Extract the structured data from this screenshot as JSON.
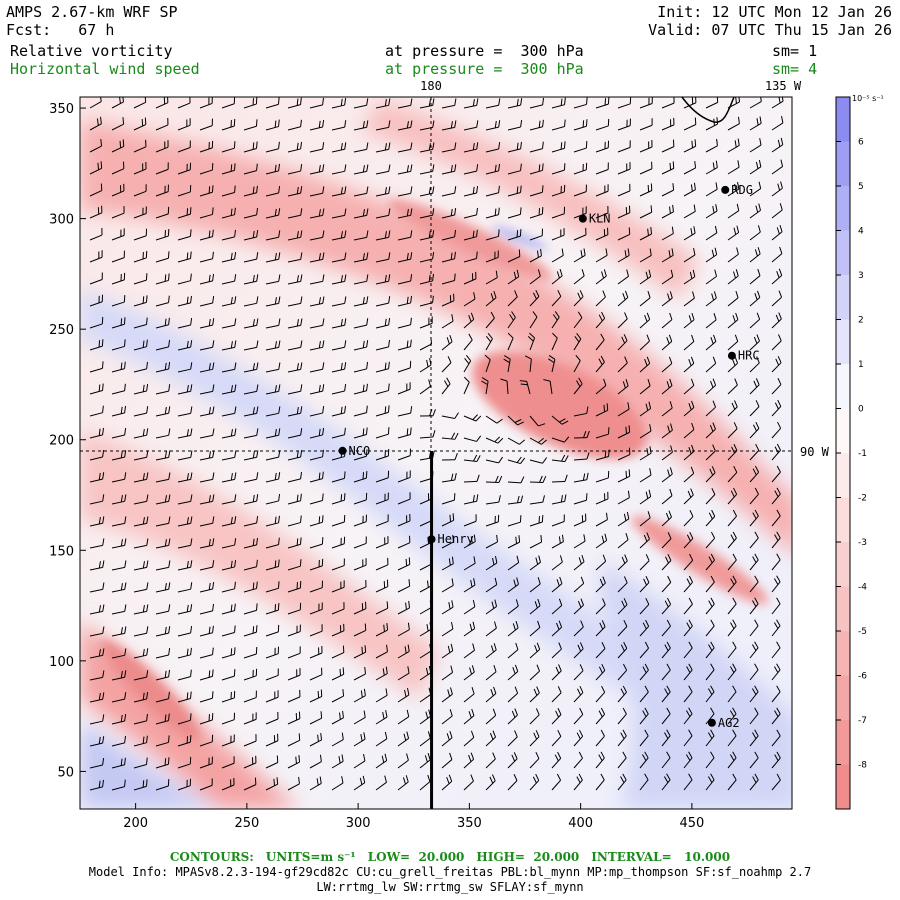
{
  "header": {
    "model": "AMPS 2.67-km WRF SP",
    "forecast": "Fcst:   67 h",
    "init": "Init: 12 UTC Mon 12 Jan 26",
    "valid": "Valid: 07 UTC Thu 15 Jan 26",
    "field1": "Relative vorticity",
    "field1_level": "at pressure =  300 hPa",
    "field1_sm": "sm= 1",
    "field2": "Horizontal wind speed",
    "field2_level": "at pressure =  300 hPa",
    "field2_sm": "sm= 4"
  },
  "colorbar": {
    "units": "10⁻⁵ s⁻¹",
    "ticks": [
      "6",
      "5",
      "4",
      "3",
      "2",
      "1",
      "0",
      "-1",
      "-2",
      "-3",
      "-4",
      "-5",
      "-6",
      "-7",
      "-8"
    ]
  },
  "chart_data": {
    "type": "heatmap",
    "title": "Relative vorticity and horizontal wind speed at 300 hPa",
    "x_ticks": [
      "200",
      "250",
      "300",
      "350",
      "400",
      "450"
    ],
    "y_ticks": [
      "350",
      "300",
      "250",
      "200",
      "150",
      "100",
      "50"
    ],
    "xlim": [
      175,
      495
    ],
    "ylim": [
      33,
      355
    ],
    "meridian_labels": [
      "180",
      "135 W",
      "90 W"
    ],
    "cross_section_x": 333,
    "stations": [
      {
        "name": "RDG",
        "x": 465,
        "y": 313
      },
      {
        "name": "KLN",
        "x": 401,
        "y": 300
      },
      {
        "name": "HRC",
        "x": 468,
        "y": 238
      },
      {
        "name": "NCO",
        "x": 293,
        "y": 195
      },
      {
        "name": "Henry",
        "x": 333,
        "y": 155
      },
      {
        "name": "AG2",
        "x": 459,
        "y": 72
      }
    ]
  },
  "contours": {
    "label": "CONTOURS:",
    "units": "UNITS=m s⁻¹",
    "low": "LOW=  20.000",
    "high": "HIGH=  20.000",
    "interval": "INTERVAL=   10.000"
  },
  "model_info": {
    "line1": "Model Info: MPASv8.2.3-194-gf29cd82c CU:cu_grell_freitas PBL:bl_mynn MP:mp_thompson SF:sf_noahmp 2.7",
    "line2": "LW:rrtmg_lw SW:rrtmg_sw SFLAY:sf_mynn"
  },
  "colors": {
    "positive": "#8c8cf0",
    "negative": "#f08c8c",
    "green": "#1a8a1a"
  }
}
